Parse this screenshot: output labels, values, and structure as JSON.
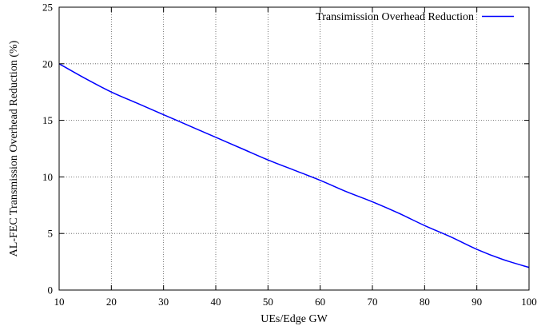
{
  "chart_data": {
    "type": "line",
    "title": "",
    "xlabel": "UEs/Edge GW",
    "ylabel": "AL-FEC Transmission Overhead Reduction (%)",
    "xlim": [
      10,
      100
    ],
    "ylim": [
      0,
      25
    ],
    "xticks": [
      10,
      20,
      30,
      40,
      50,
      60,
      70,
      80,
      90,
      100
    ],
    "yticks": [
      0,
      5,
      10,
      15,
      20,
      25
    ],
    "grid": true,
    "legend_position": "top-right",
    "series": [
      {
        "name": "Transimission Overhead Reduction",
        "color": "#0000ff",
        "x": [
          10,
          15,
          20,
          25,
          30,
          35,
          40,
          45,
          50,
          55,
          60,
          65,
          70,
          75,
          80,
          85,
          90,
          95,
          100
        ],
        "y": [
          20.0,
          18.7,
          17.5,
          16.5,
          15.5,
          14.5,
          13.5,
          12.5,
          11.5,
          10.6,
          9.7,
          8.7,
          7.8,
          6.8,
          5.7,
          4.7,
          3.6,
          2.7,
          2.0
        ]
      }
    ]
  }
}
